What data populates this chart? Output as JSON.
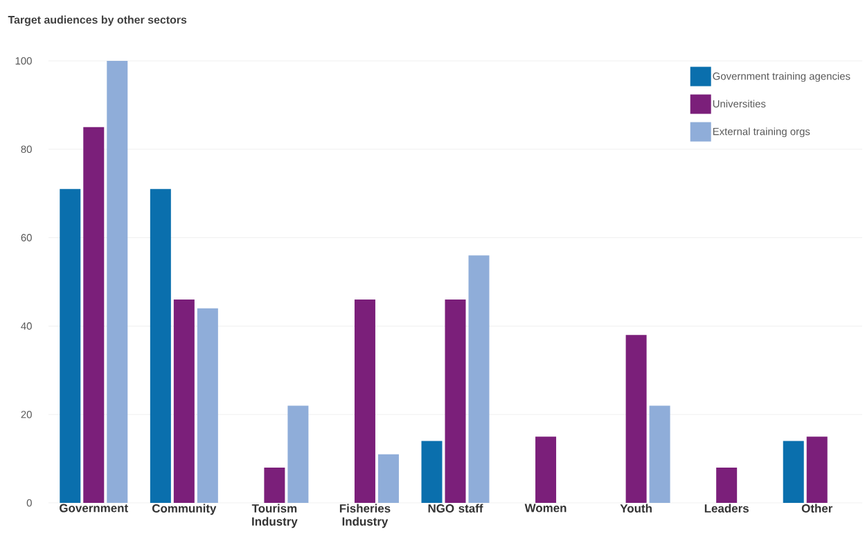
{
  "chart_data": {
    "type": "bar",
    "title": "Target audiences by other sectors",
    "categories": [
      "Government",
      "Community",
      "Tourism Industry",
      "Fisheries Industry",
      "NGO staff",
      "Women",
      "Youth",
      "Leaders",
      "Other"
    ],
    "series": [
      {
        "name": "Government training agencies",
        "color": "#0a6fad",
        "values": [
          71,
          71,
          0,
          0,
          14,
          0,
          0,
          0,
          14
        ]
      },
      {
        "name": "Universities",
        "color": "#7b1f7a",
        "values": [
          85,
          46,
          8,
          46,
          46,
          15,
          38,
          8,
          15
        ]
      },
      {
        "name": "External training orgs",
        "color": "#8fadd9",
        "values": [
          100,
          44,
          22,
          11,
          56,
          0,
          22,
          0,
          0
        ]
      }
    ],
    "ylim": [
      0,
      100
    ],
    "yticks": [
      0,
      20,
      40,
      60,
      80,
      100
    ],
    "grid": "y",
    "legend": "top right"
  }
}
